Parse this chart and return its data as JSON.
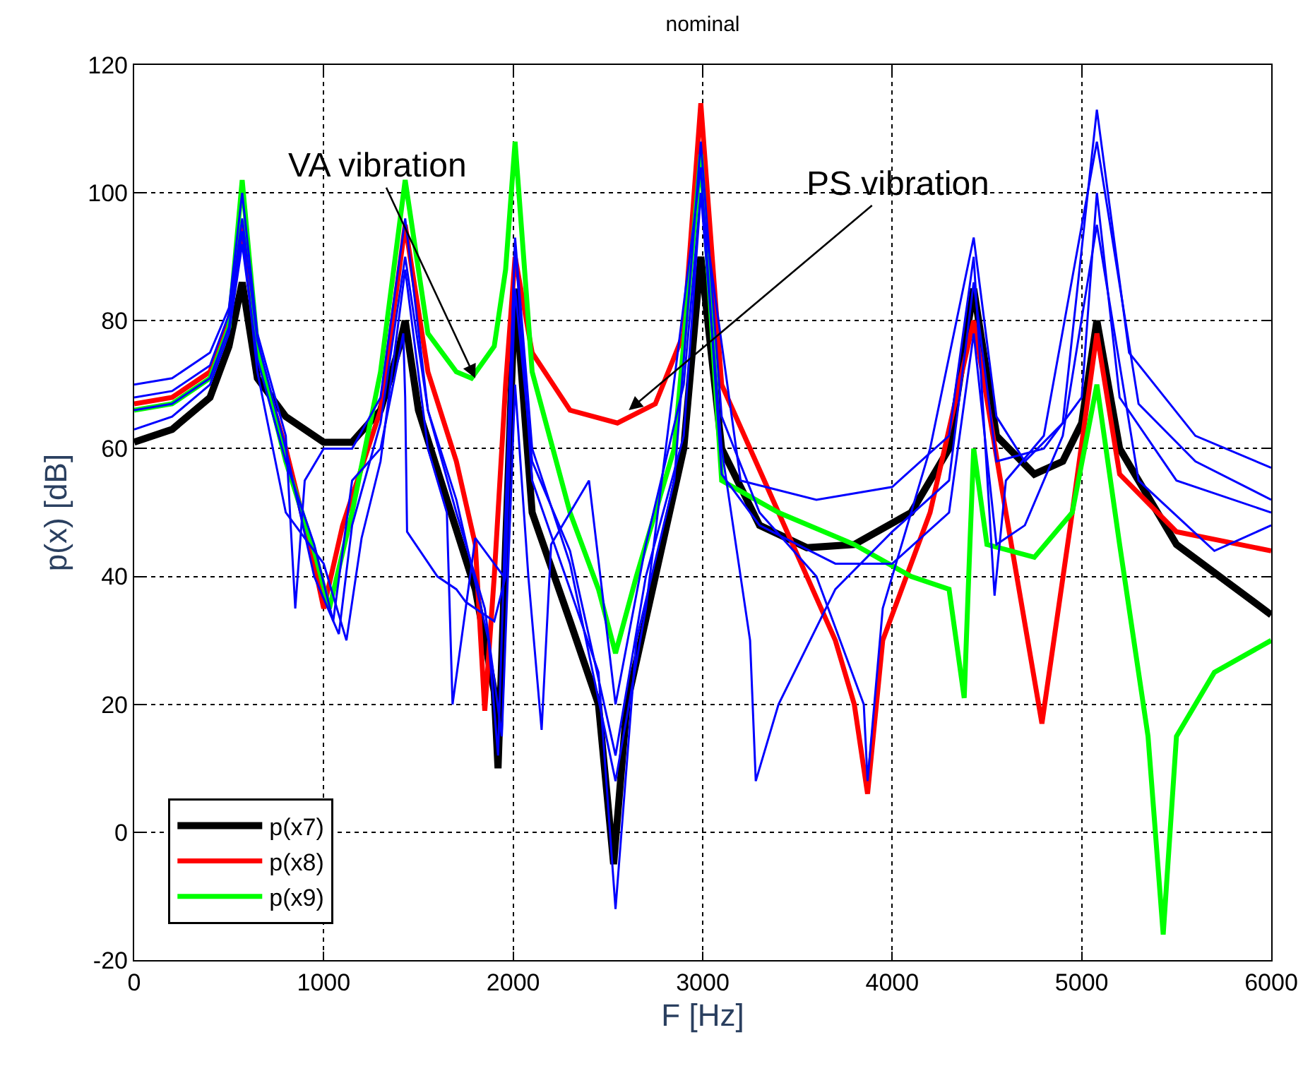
{
  "chart_data": {
    "type": "line",
    "title": "nominal",
    "xlabel": "F [Hz]",
    "ylabel": "p(x) [dB]",
    "xlim": [
      0,
      6000
    ],
    "xticks": [
      0,
      1000,
      2000,
      3000,
      4000,
      5000,
      6000
    ],
    "ylim": [
      -20,
      120
    ],
    "yticks": [
      -20,
      0,
      20,
      40,
      60,
      80,
      100,
      120
    ],
    "grid": true,
    "legend": "bottom left",
    "marker": "none",
    "line_style": "solid",
    "annotations": [
      {
        "text": "VA vibration",
        "x": 1800,
        "y": 71
      },
      {
        "text": "PS vibration",
        "x": 2610,
        "y": 66
      }
    ],
    "series": [
      {
        "name": "p(x7)",
        "color": "#000000",
        "x": [
          0,
          200,
          400,
          500,
          570,
          650,
          800,
          1000,
          1150,
          1300,
          1400,
          1430,
          1500,
          1650,
          1800,
          1900,
          1920,
          1960,
          2010,
          2100,
          2300,
          2450,
          2530,
          2600,
          2750,
          2900,
          2990,
          3100,
          3300,
          3550,
          3800,
          4100,
          4300,
          4430,
          4550,
          4750,
          4900,
          5000,
          5080,
          5200,
          5500,
          6000
        ],
        "values": [
          61,
          63,
          68,
          76,
          86,
          71,
          65,
          61,
          61,
          66,
          76,
          80,
          66,
          52,
          38,
          22,
          10,
          45,
          85,
          50,
          33,
          20,
          -5,
          20,
          40,
          60,
          90,
          60,
          48,
          44.5,
          45,
          50,
          60,
          85,
          62,
          56,
          58,
          64,
          80,
          60,
          45,
          34
        ]
      },
      {
        "name": "p(x8)",
        "color": "#ff0000",
        "x": [
          0,
          200,
          400,
          500,
          570,
          650,
          800,
          950,
          1000,
          1100,
          1300,
          1430,
          1550,
          1700,
          1800,
          1850,
          1900,
          1960,
          2010,
          2100,
          2300,
          2550,
          2750,
          2900,
          2990,
          3100,
          3400,
          3700,
          3800,
          3870,
          3950,
          4200,
          4430,
          4600,
          4790,
          4950,
          5080,
          5200,
          5500,
          6000
        ],
        "values": [
          67,
          68,
          72,
          80,
          95,
          75,
          60,
          42,
          35,
          48,
          66,
          95,
          72,
          58,
          45,
          19,
          40,
          70,
          90,
          75,
          66,
          64,
          67,
          78,
          114,
          70,
          50,
          30,
          20,
          6,
          30,
          50,
          80,
          50,
          17,
          50,
          78,
          56,
          47,
          44
        ]
      },
      {
        "name": "p(x9)",
        "color": "#00ff00",
        "x": [
          0,
          200,
          400,
          500,
          570,
          650,
          800,
          950,
          1030,
          1150,
          1300,
          1430,
          1550,
          1700,
          1780,
          1900,
          1960,
          2010,
          2100,
          2300,
          2450,
          2540,
          2650,
          2850,
          2990,
          3100,
          3400,
          3800,
          4100,
          4300,
          4380,
          4410,
          4430,
          4500,
          4750,
          4950,
          5080,
          5200,
          5350,
          5430,
          5500,
          5700,
          6000
        ],
        "values": [
          66,
          67,
          71,
          79,
          102,
          76,
          58,
          44,
          35,
          50,
          72,
          102,
          78,
          72,
          71,
          76,
          88,
          108,
          72,
          50,
          38,
          28,
          40,
          60,
          106,
          55,
          50,
          45,
          40,
          38,
          21,
          45,
          60,
          45,
          43,
          50,
          70,
          45,
          15,
          -16,
          15,
          25,
          30
        ]
      },
      {
        "color": "#0000ff",
        "x": [
          0,
          200,
          400,
          500,
          570,
          650,
          800,
          850,
          900,
          1000,
          1150,
          1300,
          1430,
          1550,
          1700,
          1870,
          1920,
          1960,
          2010,
          2100,
          2300,
          2450,
          2540,
          2650,
          2850,
          2990,
          3100,
          3300,
          3600,
          3850,
          3870,
          3950,
          4200,
          4430,
          4550,
          4700,
          4900,
          5080,
          5250,
          5600,
          6000
        ],
        "values": [
          70,
          71,
          75,
          82,
          100,
          78,
          62,
          35,
          55,
          60,
          60,
          68,
          96,
          66,
          52,
          30,
          12,
          50,
          92,
          55,
          38,
          25,
          -12,
          30,
          55,
          108,
          65,
          50,
          40,
          20,
          8,
          35,
          60,
          93,
          65,
          58,
          64,
          113,
          75,
          62,
          57
        ]
      },
      {
        "color": "#0000ff",
        "x": [
          0,
          200,
          400,
          500,
          570,
          650,
          800,
          950,
          1050,
          1150,
          1300,
          1420,
          1430,
          1440,
          1600,
          1700,
          1750,
          1900,
          1960,
          2010,
          2100,
          2300,
          2540,
          2700,
          2900,
          2990,
          3100,
          3250,
          3280,
          3400,
          3700,
          4000,
          4300,
          4430,
          4550,
          4800,
          5000,
          5080,
          5200,
          5500,
          6000
        ],
        "values": [
          63,
          65,
          70,
          78,
          92,
          74,
          58,
          45,
          33,
          55,
          60,
          78,
          68,
          47,
          40,
          38,
          36,
          33,
          40,
          85,
          58,
          44,
          12,
          40,
          62,
          100,
          60,
          30,
          8,
          20,
          38,
          47,
          55,
          86,
          58,
          60,
          68,
          100,
          68,
          55,
          50
        ]
      },
      {
        "color": "#0000ff",
        "x": [
          0,
          200,
          400,
          500,
          570,
          650,
          800,
          950,
          1080,
          1150,
          1300,
          1430,
          1550,
          1700,
          1850,
          1940,
          2010,
          2080,
          2150,
          2200,
          2400,
          2540,
          2700,
          2900,
          2990,
          3200,
          3600,
          4000,
          4300,
          4430,
          4540,
          4600,
          4800,
          5080,
          5300,
          5600,
          6000
        ],
        "values": [
          68,
          69,
          73,
          81,
          96,
          77,
          60,
          40,
          31,
          48,
          64,
          90,
          66,
          50,
          35,
          15,
          70,
          40,
          16,
          45,
          55,
          20,
          45,
          70,
          100,
          55,
          52,
          54,
          62,
          90,
          37,
          55,
          62,
          108,
          67,
          58,
          52
        ]
      },
      {
        "color": "#0000ff",
        "x": [
          0,
          200,
          400,
          500,
          570,
          650,
          800,
          1000,
          1120,
          1200,
          1300,
          1430,
          1550,
          1650,
          1680,
          1800,
          1950,
          2010,
          2100,
          2300,
          2540,
          2700,
          2990,
          3100,
          3300,
          3700,
          4000,
          4300,
          4430,
          4550,
          4700,
          4900,
          5080,
          5300,
          5700,
          6000
        ],
        "values": [
          66,
          67,
          71,
          79,
          94,
          72,
          50,
          42,
          30,
          46,
          58,
          88,
          60,
          50,
          20,
          46,
          40,
          93,
          60,
          42,
          8,
          35,
          104,
          56,
          48,
          42,
          42,
          50,
          78,
          45,
          48,
          62,
          95,
          55,
          44,
          48
        ]
      }
    ]
  }
}
